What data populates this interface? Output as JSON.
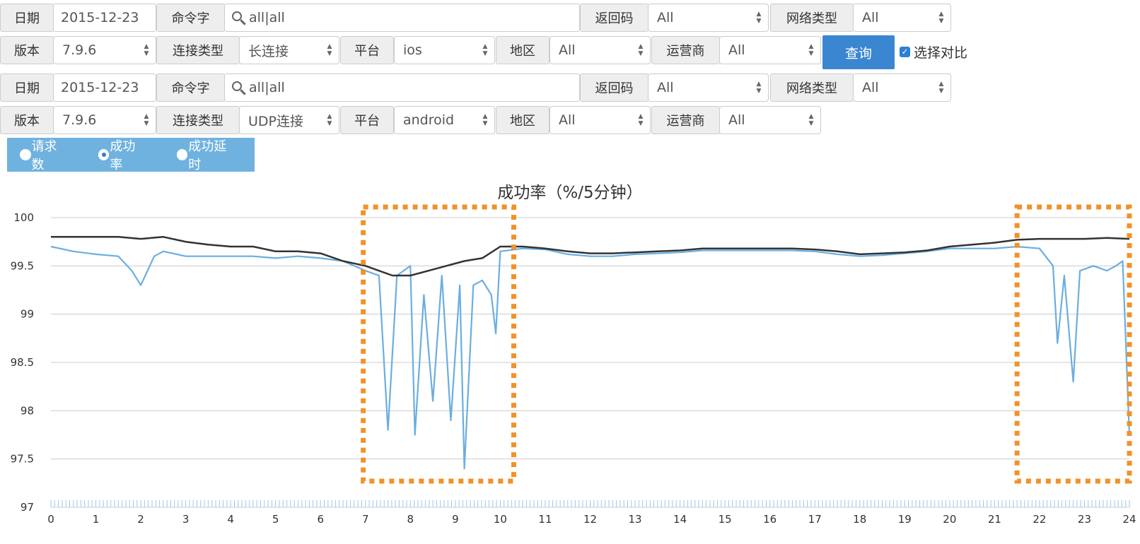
{
  "filters": [
    {
      "date_label": "日期",
      "date_value": "2015-12-23",
      "command_label": "命令字",
      "command_value": "all|all",
      "retcode_label": "返回码",
      "retcode_value": "All",
      "nettype_label": "网络类型",
      "nettype_value": "All",
      "version_label": "版本",
      "version_value": "7.9.6",
      "conntype_label": "连接类型",
      "conntype_value": "长连接",
      "platform_label": "平台",
      "platform_value": "ios",
      "region_label": "地区",
      "region_value": "All",
      "carrier_label": "运营商",
      "carrier_value": "All"
    },
    {
      "date_label": "日期",
      "date_value": "2015-12-23",
      "command_label": "命令字",
      "command_value": "all|all",
      "retcode_label": "返回码",
      "retcode_value": "All",
      "nettype_label": "网络类型",
      "nettype_value": "All",
      "version_label": "版本",
      "version_value": "7.9.6",
      "conntype_label": "连接类型",
      "conntype_value": "UDP连接",
      "platform_label": "平台",
      "platform_value": "android",
      "region_label": "地区",
      "region_value": "All",
      "carrier_label": "运营商",
      "carrier_value": "All"
    }
  ],
  "query_button": "查询",
  "compare_checkbox": {
    "label": "选择对比",
    "checked": true
  },
  "metric_radios": [
    {
      "label": "请求数",
      "selected": false
    },
    {
      "label": "成功率",
      "selected": true
    },
    {
      "label": "成功延时",
      "selected": false
    }
  ],
  "chart_data": {
    "type": "line",
    "title": "成功率（%/5分钟）",
    "ylim": [
      97,
      100
    ],
    "xlim": [
      0,
      24
    ],
    "y_ticks": [
      "97",
      "97.5",
      "98",
      "98.5",
      "99",
      "99.5",
      "100"
    ],
    "x_ticks": [
      "0",
      "1",
      "2",
      "3",
      "4",
      "5",
      "6",
      "7",
      "8",
      "9",
      "10",
      "11",
      "12",
      "13",
      "14",
      "15",
      "16",
      "17",
      "18",
      "19",
      "20",
      "21",
      "22",
      "23",
      "24"
    ],
    "grid": true,
    "highlight_regions": [
      [
        6.95,
        10.3
      ],
      [
        21.5,
        24
      ]
    ],
    "highlight_color": "#f0922b",
    "series": [
      {
        "color": "#333333",
        "points": [
          [
            0,
            99.8
          ],
          [
            0.5,
            99.8
          ],
          [
            1,
            99.8
          ],
          [
            1.5,
            99.8
          ],
          [
            2,
            99.78
          ],
          [
            2.5,
            99.8
          ],
          [
            3,
            99.75
          ],
          [
            3.5,
            99.72
          ],
          [
            4,
            99.7
          ],
          [
            4.5,
            99.7
          ],
          [
            5,
            99.65
          ],
          [
            5.5,
            99.65
          ],
          [
            6,
            99.63
          ],
          [
            6.5,
            99.55
          ],
          [
            7,
            99.5
          ],
          [
            7.3,
            99.45
          ],
          [
            7.6,
            99.4
          ],
          [
            8,
            99.4
          ],
          [
            8.4,
            99.45
          ],
          [
            8.8,
            99.5
          ],
          [
            9.2,
            99.55
          ],
          [
            9.6,
            99.58
          ],
          [
            10,
            99.7
          ],
          [
            10.5,
            99.7
          ],
          [
            11,
            99.68
          ],
          [
            11.5,
            99.65
          ],
          [
            12,
            99.63
          ],
          [
            12.5,
            99.63
          ],
          [
            13,
            99.64
          ],
          [
            13.5,
            99.65
          ],
          [
            14,
            99.66
          ],
          [
            14.5,
            99.68
          ],
          [
            15,
            99.68
          ],
          [
            15.5,
            99.68
          ],
          [
            16,
            99.68
          ],
          [
            16.5,
            99.68
          ],
          [
            17,
            99.67
          ],
          [
            17.5,
            99.65
          ],
          [
            18,
            99.62
          ],
          [
            18.5,
            99.63
          ],
          [
            19,
            99.64
          ],
          [
            19.5,
            99.66
          ],
          [
            20,
            99.7
          ],
          [
            20.5,
            99.72
          ],
          [
            21,
            99.74
          ],
          [
            21.5,
            99.77
          ],
          [
            22,
            99.78
          ],
          [
            22.5,
            99.78
          ],
          [
            23,
            99.78
          ],
          [
            23.5,
            99.79
          ],
          [
            24,
            99.78
          ]
        ]
      },
      {
        "color": "#6aaee0",
        "points": [
          [
            0,
            99.7
          ],
          [
            0.5,
            99.65
          ],
          [
            1,
            99.62
          ],
          [
            1.5,
            99.6
          ],
          [
            1.8,
            99.45
          ],
          [
            2,
            99.3
          ],
          [
            2.3,
            99.6
          ],
          [
            2.5,
            99.65
          ],
          [
            3,
            99.6
          ],
          [
            3.5,
            99.6
          ],
          [
            4,
            99.6
          ],
          [
            4.5,
            99.6
          ],
          [
            5,
            99.58
          ],
          [
            5.5,
            99.6
          ],
          [
            6,
            99.58
          ],
          [
            6.5,
            99.55
          ],
          [
            7,
            99.45
          ],
          [
            7.3,
            99.4
          ],
          [
            7.5,
            97.8
          ],
          [
            7.7,
            99.4
          ],
          [
            8,
            99.5
          ],
          [
            8.1,
            97.75
          ],
          [
            8.3,
            99.2
          ],
          [
            8.5,
            98.1
          ],
          [
            8.7,
            99.4
          ],
          [
            8.9,
            97.9
          ],
          [
            9.1,
            99.3
          ],
          [
            9.2,
            97.4
          ],
          [
            9.4,
            99.3
          ],
          [
            9.6,
            99.35
          ],
          [
            9.8,
            99.2
          ],
          [
            9.9,
            98.8
          ],
          [
            10,
            99.65
          ],
          [
            10.5,
            99.68
          ],
          [
            11,
            99.67
          ],
          [
            11.5,
            99.62
          ],
          [
            12,
            99.6
          ],
          [
            12.5,
            99.6
          ],
          [
            13,
            99.62
          ],
          [
            13.5,
            99.63
          ],
          [
            14,
            99.64
          ],
          [
            14.5,
            99.66
          ],
          [
            15,
            99.66
          ],
          [
            15.5,
            99.66
          ],
          [
            16,
            99.66
          ],
          [
            16.5,
            99.66
          ],
          [
            17,
            99.65
          ],
          [
            17.5,
            99.62
          ],
          [
            18,
            99.6
          ],
          [
            18.5,
            99.61
          ],
          [
            19,
            99.63
          ],
          [
            19.5,
            99.65
          ],
          [
            20,
            99.68
          ],
          [
            20.5,
            99.68
          ],
          [
            21,
            99.68
          ],
          [
            21.5,
            99.7
          ],
          [
            22,
            99.68
          ],
          [
            22.3,
            99.5
          ],
          [
            22.4,
            98.7
          ],
          [
            22.55,
            99.4
          ],
          [
            22.75,
            98.3
          ],
          [
            22.9,
            99.45
          ],
          [
            23.2,
            99.5
          ],
          [
            23.5,
            99.45
          ],
          [
            23.7,
            99.5
          ],
          [
            23.85,
            99.55
          ],
          [
            24,
            97.75
          ]
        ]
      }
    ]
  }
}
